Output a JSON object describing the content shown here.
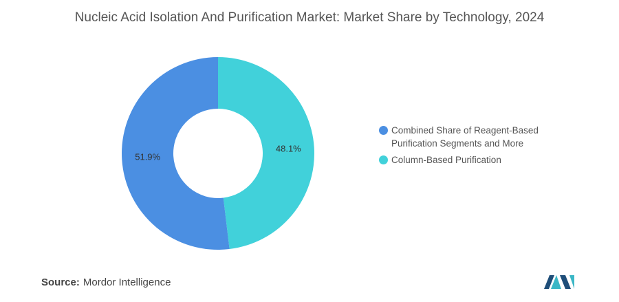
{
  "chart_data": {
    "type": "donut",
    "title": "Nucleic Acid Isolation And Purification Market: Market Share by Technology, 2024",
    "categories": [
      "Combined Share of Reagent-Based Purification Segments and More",
      "Column-Based Purification"
    ],
    "values": [
      51.9,
      48.1
    ],
    "value_labels": [
      "51.9%",
      "48.1%"
    ],
    "colors": [
      "#4b8fe2",
      "#41d1da"
    ],
    "source_label": "Source:",
    "source": "Mordor Intelligence"
  }
}
